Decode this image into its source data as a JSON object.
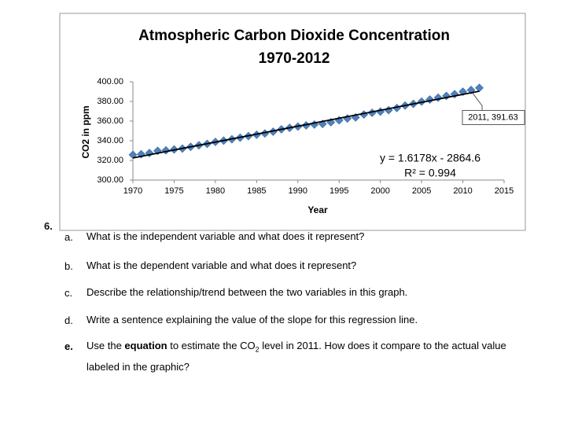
{
  "chart_data": {
    "type": "scatter",
    "title": "Atmospheric Carbon Dioxide Concentration",
    "subtitle": "1970-2012",
    "x_label": "Year",
    "y_label": "CO2 in ppm",
    "x": [
      1970,
      1971,
      1972,
      1973,
      1974,
      1975,
      1976,
      1977,
      1978,
      1979,
      1980,
      1981,
      1982,
      1983,
      1984,
      1985,
      1986,
      1987,
      1988,
      1989,
      1990,
      1991,
      1992,
      1993,
      1994,
      1995,
      1996,
      1997,
      1998,
      1999,
      2000,
      2001,
      2002,
      2003,
      2004,
      2005,
      2006,
      2007,
      2008,
      2009,
      2010,
      2011,
      2012
    ],
    "values": [
      325.7,
      326.3,
      327.5,
      329.7,
      330.2,
      331.1,
      332.0,
      333.8,
      335.4,
      336.8,
      338.8,
      340.1,
      341.5,
      343.1,
      344.7,
      346.1,
      347.4,
      349.2,
      351.6,
      353.1,
      354.4,
      355.6,
      356.5,
      357.1,
      358.8,
      360.8,
      362.6,
      363.7,
      366.7,
      368.4,
      369.6,
      371.1,
      373.3,
      375.8,
      377.5,
      379.8,
      381.9,
      383.8,
      385.6,
      387.4,
      389.9,
      391.63,
      393.8
    ],
    "color": "#4f81bd",
    "xlim": [
      1970,
      2015
    ],
    "xticks": [
      1970,
      1975,
      1980,
      1985,
      1990,
      1995,
      2000,
      2005,
      2010,
      2015
    ],
    "ylim": [
      300,
      400
    ],
    "yticks": [
      {
        "value": 300,
        "label": "300.00"
      },
      {
        "value": 320,
        "label": "320.00"
      },
      {
        "value": 340,
        "label": "340.00"
      },
      {
        "value": 360,
        "label": "360.00"
      },
      {
        "value": 380,
        "label": "380.00"
      },
      {
        "value": 400,
        "label": "400.00"
      }
    ],
    "grid": false,
    "trendline": {
      "slope": 1.6178,
      "intercept": -2864.6,
      "equation": "y = 1.6178x - 2864.6",
      "r2": 0.994,
      "r2_label": "R² = 0.994"
    },
    "annotations": [
      {
        "x": 2011,
        "y": 391.63,
        "text": "2011, 391.63"
      }
    ]
  },
  "question": {
    "number": "6.",
    "items": [
      {
        "letter": "a.",
        "text": [
          "What is the independent variable and what does it represent?"
        ]
      },
      {
        "letter": "b.",
        "text": [
          "What is the dependent variable and what does it represent?"
        ]
      },
      {
        "letter": "c.",
        "text": [
          "Describe the relationship/trend between the two variables in this graph."
        ]
      },
      {
        "letter": "d.",
        "text": [
          "Write a sentence explaining the value of the slope for this regression line."
        ]
      },
      {
        "letter": "e.",
        "text": [
          "Use the ",
          "equation",
          " to estimate the CO",
          "2",
          " level in 2011. How does it compare to the actual value labeled in the graphic?"
        ]
      }
    ]
  }
}
